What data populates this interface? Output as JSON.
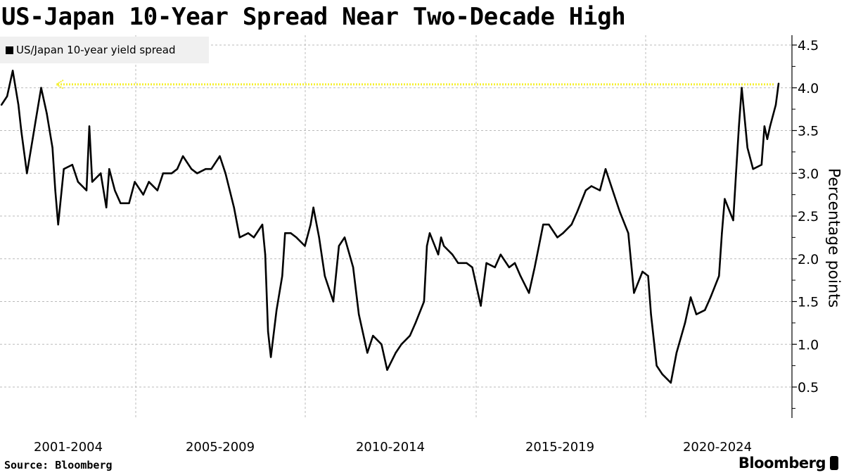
{
  "title": "US-Japan 10-Year Spread Near Two-Decade High",
  "source": "Source: Bloomberg",
  "brand": "Bloomberg",
  "chart_data": {
    "type": "line",
    "title": "US-Japan 10-Year Spread Near Two-Decade High",
    "ylabel": "Percentage points",
    "xlabel": "",
    "ylim": [
      0.15,
      4.6
    ],
    "yticks": [
      "0.5",
      "1.0",
      "1.5",
      "2.0",
      "2.5",
      "3.0",
      "3.5",
      "4.0",
      "4.5"
    ],
    "xticks": [
      "2001-2004",
      "2005-2009",
      "2010-2014",
      "2015-2019",
      "2020-2024"
    ],
    "x_range": [
      "2001-01",
      "2024-06"
    ],
    "grid": true,
    "legend_position": "top-left",
    "line_color": "#000000",
    "reference_line": {
      "value": 4.04,
      "color": "#f5f032",
      "style": "dotted-arrow"
    },
    "series": [
      {
        "name": "US/Japan 10-year yield spread",
        "points": [
          [
            "2001-01",
            3.8
          ],
          [
            "2001-03",
            3.9
          ],
          [
            "2001-05",
            4.2
          ],
          [
            "2001-07",
            3.8
          ],
          [
            "2001-08",
            3.5
          ],
          [
            "2001-10",
            3.0
          ],
          [
            "2001-12",
            3.4
          ],
          [
            "2002-01",
            3.6
          ],
          [
            "2002-03",
            4.0
          ],
          [
            "2002-05",
            3.7
          ],
          [
            "2002-07",
            3.3
          ],
          [
            "2002-08",
            2.8
          ],
          [
            "2002-09",
            2.4
          ],
          [
            "2002-11",
            3.05
          ],
          [
            "2003-02",
            3.1
          ],
          [
            "2003-04",
            2.9
          ],
          [
            "2003-07",
            2.8
          ],
          [
            "2003-08",
            3.55
          ],
          [
            "2003-09",
            2.9
          ],
          [
            "2003-12",
            3.0
          ],
          [
            "2004-02",
            2.6
          ],
          [
            "2004-03",
            3.05
          ],
          [
            "2004-05",
            2.8
          ],
          [
            "2004-07",
            2.65
          ],
          [
            "2004-10",
            2.65
          ],
          [
            "2004-12",
            2.9
          ],
          [
            "2005-03",
            2.75
          ],
          [
            "2005-05",
            2.9
          ],
          [
            "2005-08",
            2.8
          ],
          [
            "2005-10",
            3.0
          ],
          [
            "2006-01",
            3.0
          ],
          [
            "2006-03",
            3.05
          ],
          [
            "2006-05",
            3.2
          ],
          [
            "2006-08",
            3.05
          ],
          [
            "2006-10",
            3.0
          ],
          [
            "2007-01",
            3.05
          ],
          [
            "2007-03",
            3.05
          ],
          [
            "2007-06",
            3.2
          ],
          [
            "2007-08",
            3.0
          ],
          [
            "2007-11",
            2.6
          ],
          [
            "2008-01",
            2.25
          ],
          [
            "2008-04",
            2.3
          ],
          [
            "2008-06",
            2.25
          ],
          [
            "2008-09",
            2.4
          ],
          [
            "2008-10",
            2.05
          ],
          [
            "2008-11",
            1.15
          ],
          [
            "2008-12",
            0.85
          ],
          [
            "2009-02",
            1.4
          ],
          [
            "2009-04",
            1.8
          ],
          [
            "2009-05",
            2.3
          ],
          [
            "2009-07",
            2.3
          ],
          [
            "2009-09",
            2.25
          ],
          [
            "2009-12",
            2.15
          ],
          [
            "2010-02",
            2.4
          ],
          [
            "2010-03",
            2.6
          ],
          [
            "2010-05",
            2.25
          ],
          [
            "2010-07",
            1.8
          ],
          [
            "2010-10",
            1.5
          ],
          [
            "2010-12",
            2.15
          ],
          [
            "2011-02",
            2.25
          ],
          [
            "2011-05",
            1.9
          ],
          [
            "2011-07",
            1.35
          ],
          [
            "2011-10",
            0.9
          ],
          [
            "2011-12",
            1.1
          ],
          [
            "2012-03",
            1.0
          ],
          [
            "2012-05",
            0.7
          ],
          [
            "2012-08",
            0.9
          ],
          [
            "2012-10",
            1.0
          ],
          [
            "2013-01",
            1.1
          ],
          [
            "2013-03",
            1.25
          ],
          [
            "2013-06",
            1.5
          ],
          [
            "2013-07",
            2.15
          ],
          [
            "2013-08",
            2.3
          ],
          [
            "2013-11",
            2.05
          ],
          [
            "2013-12",
            2.25
          ],
          [
            "2014-01",
            2.15
          ],
          [
            "2014-04",
            2.05
          ],
          [
            "2014-06",
            1.95
          ],
          [
            "2014-09",
            1.95
          ],
          [
            "2014-11",
            1.9
          ],
          [
            "2015-02",
            1.45
          ],
          [
            "2015-04",
            1.95
          ],
          [
            "2015-07",
            1.9
          ],
          [
            "2015-09",
            2.05
          ],
          [
            "2015-12",
            1.9
          ],
          [
            "2016-02",
            1.95
          ],
          [
            "2016-04",
            1.8
          ],
          [
            "2016-07",
            1.6
          ],
          [
            "2016-09",
            1.9
          ],
          [
            "2016-12",
            2.4
          ],
          [
            "2017-02",
            2.4
          ],
          [
            "2017-05",
            2.25
          ],
          [
            "2017-07",
            2.3
          ],
          [
            "2017-10",
            2.4
          ],
          [
            "2017-12",
            2.55
          ],
          [
            "2018-03",
            2.8
          ],
          [
            "2018-05",
            2.85
          ],
          [
            "2018-08",
            2.8
          ],
          [
            "2018-10",
            3.05
          ],
          [
            "2019-01",
            2.75
          ],
          [
            "2019-03",
            2.55
          ],
          [
            "2019-06",
            2.3
          ],
          [
            "2019-08",
            1.6
          ],
          [
            "2019-11",
            1.85
          ],
          [
            "2020-01",
            1.8
          ],
          [
            "2020-02",
            1.35
          ],
          [
            "2020-04",
            0.75
          ],
          [
            "2020-06",
            0.65
          ],
          [
            "2020-09",
            0.55
          ],
          [
            "2020-11",
            0.9
          ],
          [
            "2021-02",
            1.25
          ],
          [
            "2021-04",
            1.55
          ],
          [
            "2021-06",
            1.35
          ],
          [
            "2021-09",
            1.4
          ],
          [
            "2021-11",
            1.55
          ],
          [
            "2022-02",
            1.8
          ],
          [
            "2022-03",
            2.3
          ],
          [
            "2022-04",
            2.7
          ],
          [
            "2022-07",
            2.45
          ],
          [
            "2022-08",
            3.0
          ],
          [
            "2022-09",
            3.55
          ],
          [
            "2022-10",
            4.0
          ],
          [
            "2022-12",
            3.3
          ],
          [
            "2023-02",
            3.05
          ],
          [
            "2023-05",
            3.1
          ],
          [
            "2023-06",
            3.55
          ],
          [
            "2023-07",
            3.4
          ],
          [
            "2023-08",
            3.55
          ],
          [
            "2023-10",
            3.8
          ],
          [
            "2023-11",
            4.05
          ]
        ]
      }
    ]
  }
}
